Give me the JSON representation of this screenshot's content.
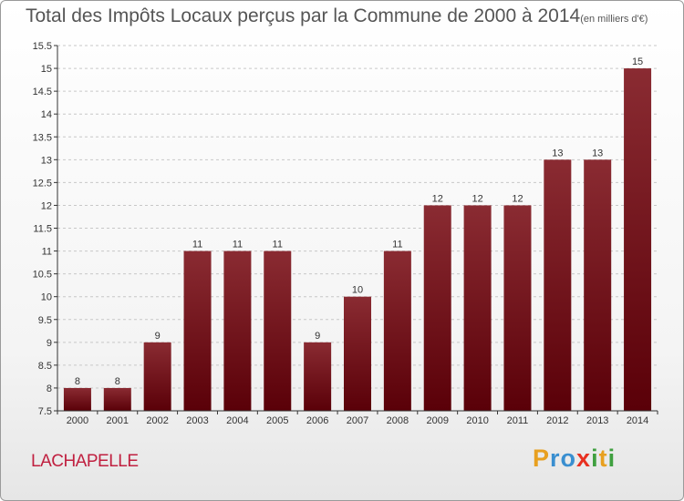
{
  "colors": {
    "bar_top": "#8a2b32",
    "bar_bottom": "#5a0008",
    "commune": "#c02040",
    "title": "#555555"
  },
  "title": {
    "main": "Total des Impôts Locaux perçus par la Commune de 2000 à 2014",
    "unit": "(en milliers d'€)"
  },
  "commune": "LACHAPELLE",
  "logo": {
    "letters": [
      "P",
      "r",
      "o",
      "x",
      "i",
      "t",
      "i"
    ],
    "colors": [
      "#e8a020",
      "#3a8fd0",
      "#3a8fd0",
      "#e83020",
      "#40a040",
      "#e8a020",
      "#40a040"
    ]
  },
  "chart_data": {
    "type": "bar",
    "title": "Total des Impôts Locaux perçus par la Commune de 2000 à 2014(en milliers d'€)",
    "xlabel": "",
    "ylabel": "",
    "categories": [
      "2000",
      "2001",
      "2002",
      "2003",
      "2004",
      "2005",
      "2006",
      "2007",
      "2008",
      "2009",
      "2010",
      "2011",
      "2012",
      "2013",
      "2014"
    ],
    "values": [
      8,
      8,
      9,
      11,
      11,
      11,
      9,
      10,
      11,
      12,
      12,
      12,
      13,
      13,
      15
    ],
    "labels": [
      "8",
      "8",
      "9",
      "11",
      "11",
      "11",
      "9",
      "10",
      "11",
      "12",
      "12",
      "12",
      "13",
      "13",
      "15"
    ],
    "ylim": [
      7.5,
      15.5
    ],
    "yticks": [
      7.5,
      8,
      8.5,
      9,
      9.5,
      10,
      10.5,
      11,
      11.5,
      12,
      12.5,
      13,
      13.5,
      14,
      14.5,
      15,
      15.5
    ],
    "ytick_labels": [
      "7.5",
      "8",
      "8.5",
      "9",
      "9.5",
      "10",
      "10.5",
      "11",
      "11.5",
      "12",
      "12.5",
      "13",
      "13.5",
      "14",
      "14.5",
      "15",
      "15.5"
    ],
    "grid": true
  }
}
